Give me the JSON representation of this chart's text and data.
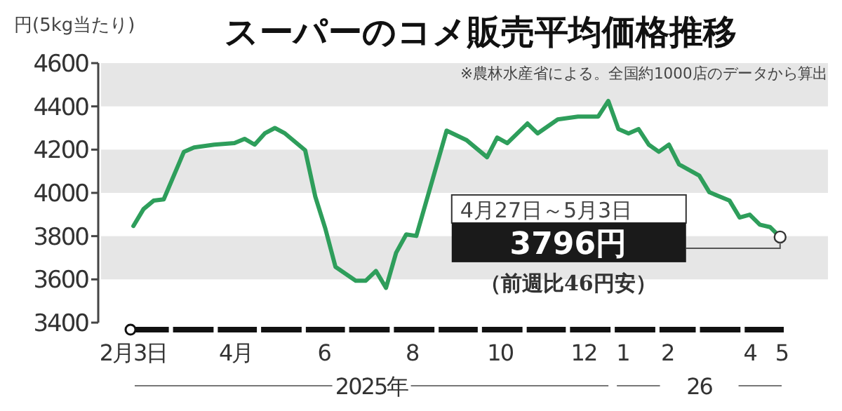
{
  "chart_data": {
    "type": "line",
    "title": "スーパーのコメ販売平均価格推移",
    "subtitle": "※農林水産省による。全国約1000店のデータから算出",
    "ylabel": "円(5kg当たり)",
    "x": [
      "2025-02-03",
      "2025-02-10",
      "2025-02-17",
      "2025-02-24",
      "2025-03-10",
      "2025-03-17",
      "2025-03-31",
      "2025-04-14",
      "2025-04-21",
      "2025-04-28",
      "2025-05-05",
      "2025-05-12",
      "2025-05-19",
      "2025-06-02",
      "2025-06-09",
      "2025-06-16",
      "2025-06-23",
      "2025-07-07",
      "2025-07-14",
      "2025-07-21",
      "2025-07-28",
      "2025-08-04",
      "2025-08-11",
      "2025-08-18",
      "2025-09-08",
      "2025-09-22",
      "2025-10-06",
      "2025-10-13",
      "2025-10-20",
      "2025-11-03",
      "2025-11-10",
      "2025-11-24",
      "2025-12-08",
      "2025-12-22",
      "2025-12-29",
      "2026-01-05",
      "2026-01-12",
      "2026-01-19",
      "2026-01-26",
      "2026-02-02",
      "2026-02-09",
      "2026-02-16",
      "2026-03-02",
      "2026-03-09",
      "2026-03-23",
      "2026-03-30",
      "2026-04-06",
      "2026-04-13",
      "2026-04-20",
      "2026-04-27"
    ],
    "series": [
      {
        "color": "#2e9e5b",
        "values": [
          3847,
          3925,
          3964,
          3970,
          4190,
          4210,
          4223,
          4230,
          4250,
          4223,
          4275,
          4300,
          4275,
          4197,
          3983,
          3834,
          3658,
          3594,
          3594,
          3639,
          3561,
          3723,
          3808,
          3801,
          4288,
          4243,
          4165,
          4256,
          4230,
          4321,
          4275,
          4340,
          4353,
          4353,
          4425,
          4295,
          4275,
          4295,
          4223,
          4190,
          4223,
          4132,
          4080,
          4003,
          3964,
          3886,
          3899,
          3853,
          3842,
          3796
        ]
      }
    ],
    "xlim": [
      "2025-02-01",
      "2026-05-01"
    ],
    "bands": [
      {
        "axis": "y",
        "from": 4400,
        "to": 4600,
        "color": "#e6e6e6"
      },
      {
        "axis": "y",
        "from": 4000,
        "to": 4200,
        "color": "#e6e6e6"
      },
      {
        "axis": "y",
        "from": 3600,
        "to": 3800,
        "color": "#e6e6e6"
      }
    ],
    "xticks": [
      {
        "value": "2025-02-03",
        "label": "2月3日"
      },
      {
        "value": "2025-04-15",
        "label": "4月"
      },
      {
        "value": "2025-06-15",
        "label": "6"
      },
      {
        "value": "2025-08-15",
        "label": "8"
      },
      {
        "value": "2025-10-15",
        "label": "10"
      },
      {
        "value": "2025-12-12",
        "label": "12"
      },
      {
        "value": "2026-01-08",
        "label": "1"
      },
      {
        "value": "2026-02-08",
        "label": "2"
      },
      {
        "value": "2026-04-06",
        "label": "4"
      },
      {
        "value": "2026-04-28",
        "label": "5"
      }
    ],
    "ylim": [
      3400,
      4600
    ],
    "yticks": [
      3400,
      3600,
      3800,
      4000,
      4200,
      4400,
      4600
    ],
    "annotations": [
      "4月27日～5月3日",
      "3796円",
      "（前週比46円安）",
      "2025年",
      "26"
    ]
  }
}
